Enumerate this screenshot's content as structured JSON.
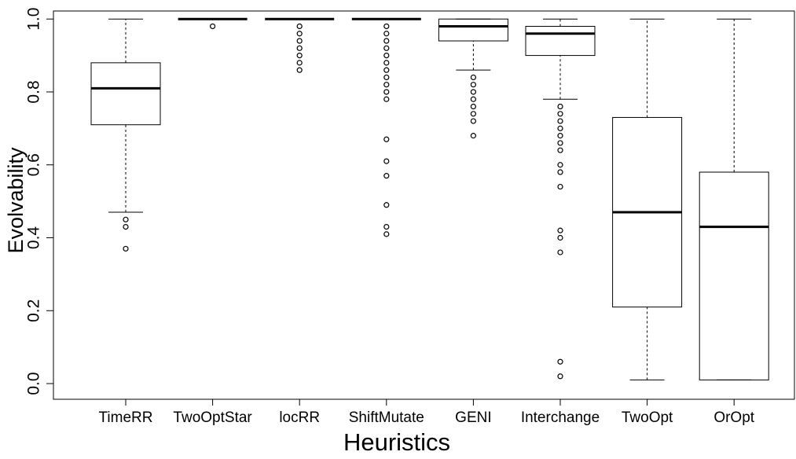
{
  "chart_data": {
    "type": "box",
    "x_label": "Heuristics",
    "y_label": "Evolvability",
    "categories": [
      "TimeRR",
      "TwoOptStar",
      "locRR",
      "ShiftMutate",
      "GENI",
      "Interchange",
      "TwoOpt",
      "OrOpt"
    ],
    "boxes": [
      {
        "whislo": 0.47,
        "q1": 0.71,
        "med": 0.81,
        "q3": 0.88,
        "whishi": 1.0,
        "fliers": [
          0.45,
          0.43,
          0.37
        ]
      },
      {
        "whislo": 1.0,
        "q1": 1.0,
        "med": 1.0,
        "q3": 1.0,
        "whishi": 1.0,
        "fliers": [
          0.98
        ]
      },
      {
        "whislo": 1.0,
        "q1": 1.0,
        "med": 1.0,
        "q3": 1.0,
        "whishi": 1.0,
        "fliers": [
          0.98,
          0.96,
          0.94,
          0.92,
          0.9,
          0.88,
          0.86
        ]
      },
      {
        "whislo": 1.0,
        "q1": 1.0,
        "med": 1.0,
        "q3": 1.0,
        "whishi": 1.0,
        "fliers": [
          0.98,
          0.96,
          0.94,
          0.92,
          0.9,
          0.88,
          0.86,
          0.84,
          0.82,
          0.8,
          0.78,
          0.67,
          0.61,
          0.57,
          0.49,
          0.43,
          0.41
        ]
      },
      {
        "whislo": 0.86,
        "q1": 0.94,
        "med": 0.98,
        "q3": 1.0,
        "whishi": 1.0,
        "fliers": [
          0.84,
          0.82,
          0.8,
          0.78,
          0.76,
          0.74,
          0.72,
          0.68
        ]
      },
      {
        "whislo": 0.78,
        "q1": 0.9,
        "med": 0.96,
        "q3": 0.98,
        "whishi": 1.0,
        "fliers": [
          0.76,
          0.74,
          0.72,
          0.7,
          0.68,
          0.66,
          0.64,
          0.6,
          0.58,
          0.54,
          0.42,
          0.4,
          0.36,
          0.06,
          0.02
        ]
      },
      {
        "whislo": 0.01,
        "q1": 0.21,
        "med": 0.47,
        "q3": 0.73,
        "whishi": 1.0,
        "fliers": []
      },
      {
        "whislo": 0.01,
        "q1": 0.01,
        "med": 0.43,
        "q3": 0.58,
        "whishi": 1.0,
        "fliers": []
      }
    ],
    "color": "#000000",
    "ylim": [
      -0.043,
      1.022
    ],
    "yticks": [
      {
        "value": 0,
        "label": "0.0"
      },
      0.2,
      0.4,
      0.6,
      0.8,
      {
        "value": 1,
        "label": "1.0"
      }
    ]
  }
}
